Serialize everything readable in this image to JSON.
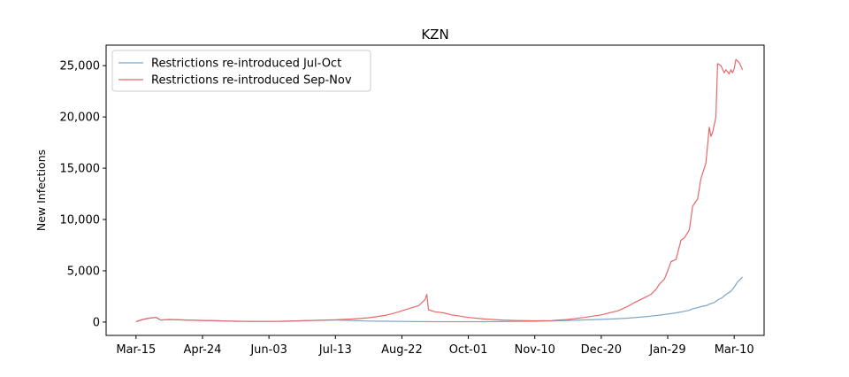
{
  "chart_data": {
    "type": "line",
    "title": "KZN",
    "xlabel": "",
    "ylabel": "New Infections",
    "x_ticks": [
      "Mar-15",
      "Apr-24",
      "Jun-03",
      "Jul-13",
      "Aug-22",
      "Oct-01",
      "Nov-10",
      "Dec-20",
      "Jan-29",
      "Mar-10"
    ],
    "x_tick_days": [
      0,
      40,
      80,
      120,
      160,
      200,
      240,
      280,
      320,
      360
    ],
    "xlim": [
      -18,
      378
    ],
    "y_ticks": [
      0,
      5000,
      10000,
      15000,
      20000,
      25000
    ],
    "y_tick_labels": [
      "0",
      "5,000",
      "10,000",
      "15,000",
      "20,000",
      "25,000"
    ],
    "ylim": [
      -1300,
      27000
    ],
    "grid": false,
    "legend_position": "top-left",
    "series": [
      {
        "name": "Restrictions re-introduced Jul-Oct",
        "color": "#7ba6cc",
        "x": [
          0,
          4,
          8,
          12,
          15,
          20,
          30,
          40,
          50,
          60,
          70,
          80,
          90,
          100,
          110,
          120,
          130,
          140,
          150,
          160,
          170,
          180,
          190,
          200,
          210,
          220,
          230,
          240,
          250,
          260,
          270,
          280,
          290,
          296,
          300,
          305,
          310,
          315,
          320,
          325,
          330,
          333,
          335,
          338,
          340,
          343,
          345,
          348,
          350,
          353,
          355,
          358,
          360,
          362,
          365
        ],
        "y": [
          50,
          250,
          380,
          450,
          200,
          250,
          200,
          160,
          120,
          80,
          60,
          60,
          80,
          120,
          170,
          200,
          150,
          100,
          80,
          60,
          50,
          40,
          40,
          40,
          40,
          50,
          60,
          80,
          110,
          160,
          210,
          260,
          330,
          380,
          430,
          500,
          580,
          680,
          780,
          900,
          1050,
          1150,
          1300,
          1400,
          1500,
          1600,
          1750,
          1900,
          2150,
          2400,
          2700,
          3000,
          3400,
          3900,
          4400
        ]
      },
      {
        "name": "Restrictions re-introduced Sep-Nov",
        "color": "#e8686a",
        "x": [
          0,
          4,
          8,
          12,
          15,
          20,
          30,
          40,
          50,
          60,
          70,
          80,
          90,
          100,
          110,
          120,
          130,
          140,
          150,
          155,
          160,
          165,
          170,
          172,
          174,
          175,
          176,
          180,
          185,
          190,
          200,
          210,
          220,
          230,
          240,
          250,
          260,
          270,
          280,
          290,
          295,
          300,
          305,
          310,
          313,
          315,
          318,
          320,
          322,
          325,
          328,
          330,
          333,
          335,
          338,
          340,
          342,
          343,
          345,
          346,
          347,
          349,
          350,
          352,
          354,
          355,
          357,
          358,
          359,
          360,
          361,
          363,
          365
        ],
        "y": [
          50,
          250,
          380,
          450,
          200,
          250,
          200,
          160,
          120,
          80,
          60,
          60,
          80,
          130,
          180,
          230,
          300,
          420,
          650,
          850,
          1100,
          1350,
          1600,
          1900,
          2200,
          2700,
          1200,
          1000,
          900,
          700,
          450,
          300,
          200,
          150,
          120,
          150,
          250,
          450,
          700,
          1100,
          1450,
          1900,
          2300,
          2700,
          3200,
          3700,
          4200,
          5000,
          5900,
          6100,
          8000,
          8200,
          9000,
          11300,
          12000,
          14000,
          15000,
          15500,
          19000,
          18100,
          18500,
          20000,
          25200,
          25000,
          24300,
          24600,
          24200,
          24600,
          24300,
          24700,
          25600,
          25300,
          24600
        ]
      }
    ]
  }
}
